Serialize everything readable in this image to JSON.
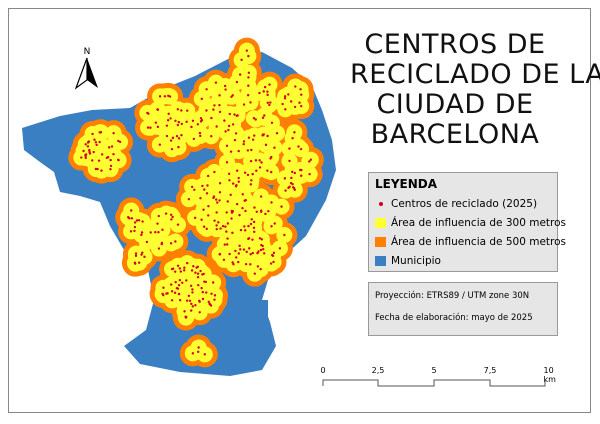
{
  "title": {
    "lines": [
      "CENTROS DE",
      "RECICLADO DE LA",
      "CIUDAD DE",
      "BARCELONA"
    ]
  },
  "north_arrow": {
    "label": "N"
  },
  "legend": {
    "heading": "LEYENDA",
    "items": [
      {
        "label": "Centros de reciclado (2025)",
        "color": "#d0021b",
        "symbol": "point"
      },
      {
        "label": "Área de influencia de 300 metros",
        "color": "#ffff33",
        "symbol": "fill"
      },
      {
        "label": "Área de influencia de 500 metros",
        "color": "#ff8000",
        "symbol": "fill"
      },
      {
        "label": "Municipio",
        "color": "#3a7fc1",
        "symbol": "fill"
      }
    ]
  },
  "info": {
    "projection": "Proyección: ETRS89 / UTM zone 30N",
    "date": "Fecha de elaboración: mayo de 2025"
  },
  "scale_bar": {
    "ticks": [
      "0",
      "2,5",
      "5",
      "7,5",
      "10 km"
    ]
  }
}
